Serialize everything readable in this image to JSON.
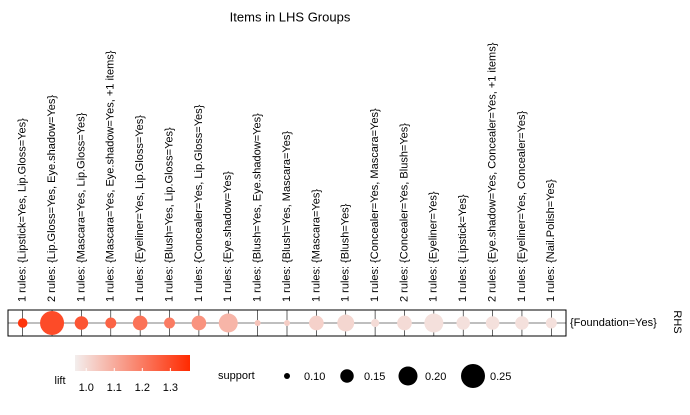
{
  "chart_data": {
    "type": "grouped-matrix",
    "title": "Items in LHS Groups",
    "rhs_axis_label": "RHS",
    "categories": [
      "1 rules: {Lipstick=Yes, Lip.Gloss=Yes}",
      "2 rules: {Lip.Gloss=Yes, Eye.shadow=Yes}",
      "1 rules: {Mascara=Yes, Lip.Gloss=Yes}",
      "1 rules: {Mascara=Yes, Eye.shadow=Yes, +1 items}",
      "1 rules: {Eyeliner=Yes, Lip.Gloss=Yes}",
      "1 rules: {Blush=Yes, Lip.Gloss=Yes}",
      "1 rules: {Concealer=Yes, Lip.Gloss=Yes}",
      "1 rules: {Eye.shadow=Yes}",
      "1 rules: {Blush=Yes, Eye.shadow=Yes}",
      "1 rules: {Blush=Yes, Mascara=Yes}",
      "1 rules: {Mascara=Yes}",
      "1 rules: {Blush=Yes}",
      "1 rules: {Concealer=Yes, Mascara=Yes}",
      "2 rules: {Concealer=Yes, Blush=Yes}",
      "1 rules: {Eyeliner=Yes}",
      "1 rules: {Lipstick=Yes}",
      "2 rules: {Eye.shadow=Yes, Concealer=Yes, +1 items}",
      "1 rules: {Eyeliner=Yes, Concealer=Yes}",
      "1 rules: {Nail.Polish=Yes}"
    ],
    "rhs": [
      "{Foundation=Yes}"
    ],
    "size": {
      "name": "support",
      "values": [
        0.12,
        0.25,
        0.15,
        0.13,
        0.16,
        0.13,
        0.16,
        0.2,
        0.1,
        0.1,
        0.16,
        0.18,
        0.11,
        0.16,
        0.2,
        0.15,
        0.15,
        0.15,
        0.13
      ],
      "ticks": [
        {
          "value": 0.1,
          "label": "0.10"
        },
        0.15,
        {
          "value": 0.2,
          "label": "0.20"
        },
        0.25
      ]
    },
    "color": {
      "name": "lift",
      "values": [
        1.35,
        1.3,
        1.28,
        1.25,
        1.22,
        1.2,
        1.15,
        1.08,
        1.05,
        1.03,
        1.02,
        1.01,
        1.0,
        1.0,
        0.99,
        0.99,
        0.99,
        0.99,
        0.99
      ],
      "lim": [
        0.96,
        1.37
      ],
      "ticks": [
        {
          "value": 1,
          "label": "1.0"
        },
        1.1,
        1.2,
        1.3
      ],
      "colors": [
        "#f3eeed",
        "#ff2a00"
      ]
    }
  }
}
